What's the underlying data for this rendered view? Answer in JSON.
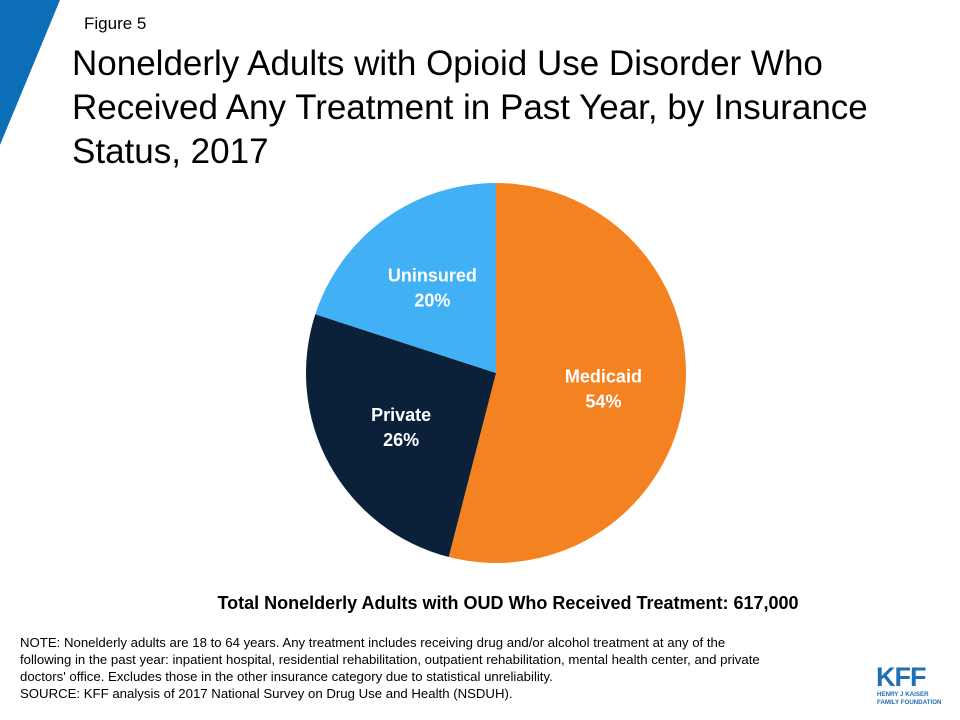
{
  "figure_label": "Figure 5",
  "title": "Nonelderly Adults with Opioid Use Disorder Who Received Any Treatment in Past Year, by Insurance Status, 2017",
  "colors": {
    "accent": "#0b6eb7",
    "medicaid": "#f58220",
    "private": "#0a2139",
    "uninsured": "#41b0f5"
  },
  "chart_data": {
    "type": "pie",
    "title": "Nonelderly Adults with Opioid Use Disorder Who Received Any Treatment in Past Year, by Insurance Status, 2017",
    "slices": [
      {
        "label": "Medicaid",
        "value": 54,
        "display": "54%",
        "color": "#f58220"
      },
      {
        "label": "Private",
        "value": 26,
        "display": "26%",
        "color": "#0a2139"
      },
      {
        "label": "Uninsured",
        "value": 20,
        "display": "20%",
        "color": "#41b0f5"
      }
    ],
    "start": "12 o'clock",
    "direction": "clockwise",
    "legend": "none"
  },
  "total_line": "Total Nonelderly Adults with OUD Who Received Treatment: 617,000",
  "footnote": {
    "lines": [
      "NOTE: Nonelderly adults are 18 to 64 years. Any treatment includes receiving drug and/or alcohol treatment at any of the",
      "following in the past year: inpatient hospital, residential rehabilitation, outpatient rehabilitation, mental health center, and private",
      "doctors' office. Excludes those in the other insurance category due to statistical unreliability.",
      "SOURCE: KFF analysis of 2017 National Survey on Drug Use and Health (NSDUH)."
    ]
  },
  "logo": {
    "letters": "KFF",
    "line1": "HENRY J KAISER",
    "line2": "FAMILY FOUNDATION"
  }
}
